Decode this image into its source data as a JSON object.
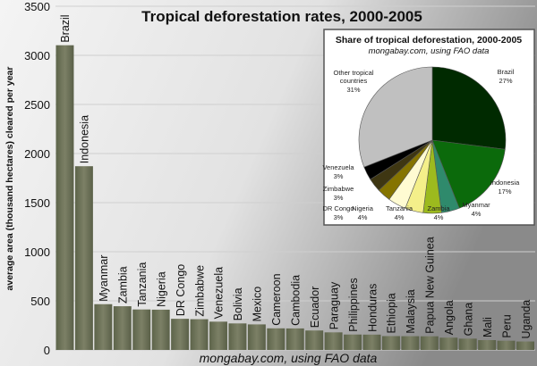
{
  "chart_data": [
    {
      "type": "bar",
      "title": "Tropical deforestation rates, 2000-2005",
      "xlabel": "mongabay.com, using FAO data",
      "ylabel": "average area (thousand hectares) cleared per year",
      "ylim": [
        0,
        3500
      ],
      "yticks": [
        0,
        500,
        1000,
        1500,
        2000,
        2500,
        3000,
        3500
      ],
      "grid": true,
      "bar_color": "#6b7257",
      "categories": [
        "Brazil",
        "Indonesia",
        "Myanmar",
        "Zambia",
        "Tanzania",
        "Nigeria",
        "DR Congo",
        "Zimbabwe",
        "Venezuela",
        "Bolivia",
        "Mexico",
        "Cameroon",
        "Cambodia",
        "Ecuador",
        "Paraguay",
        "Philippines",
        "Honduras",
        "Ethiopia",
        "Malaysia",
        "Papua New Guinea",
        "Angola",
        "Ghana",
        "Mali",
        "Peru",
        "Uganda"
      ],
      "values": [
        3103,
        1871,
        466,
        445,
        412,
        410,
        317,
        313,
        288,
        270,
        260,
        220,
        219,
        198,
        179,
        157,
        156,
        141,
        140,
        139,
        125,
        115,
        100,
        94,
        86
      ]
    },
    {
      "type": "pie",
      "title": "Share of tropical deforestation, 2000-2005",
      "subtitle": "mongabay.com, using FAO data",
      "labels": [
        "Brazil",
        "Indonesia",
        "Myanmar",
        "Zambia",
        "Tanzania",
        "Nigeria",
        "DR Congo",
        "Zimbabwe",
        "Venezuela",
        "Other tropical countries"
      ],
      "values": [
        27,
        17,
        4,
        4,
        4,
        4,
        3,
        3,
        3,
        31
      ],
      "value_labels": [
        "27%",
        "17%",
        "4%",
        "4%",
        "4%",
        "4%",
        "3%",
        "3%",
        "3%",
        "31%"
      ],
      "colors": [
        "#002a00",
        "#0b6a0b",
        "#2f8a6c",
        "#9cba1e",
        "#f4ef8a",
        "#fffbd2",
        "#857400",
        "#3e3612",
        "#000000",
        "#c0c0c0"
      ]
    }
  ]
}
